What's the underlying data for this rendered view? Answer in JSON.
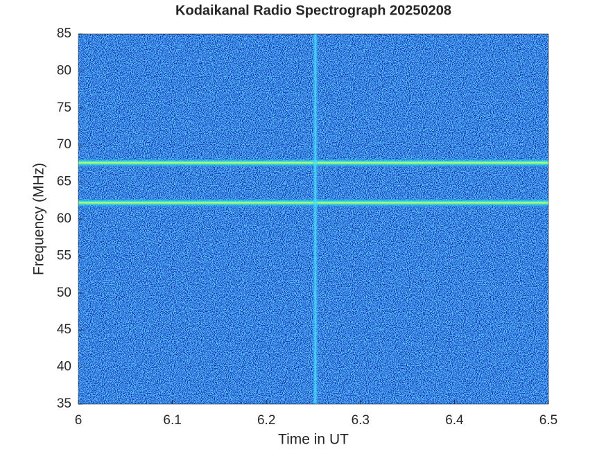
{
  "chart_data": {
    "type": "spectrogram",
    "title": "Kodaikanal Radio Spectrograph  20250208",
    "x_label": "Time in UT",
    "y_label": "Frequency (MHz)",
    "xlim": [
      6,
      6.5
    ],
    "xticks": [
      6,
      6.1,
      6.2,
      6.3,
      6.4,
      6.5
    ],
    "ylim": [
      35,
      85
    ],
    "yticks": [
      35,
      40,
      45,
      50,
      55,
      60,
      65,
      70,
      75,
      80,
      85
    ],
    "horizontal_bands": [
      67.6,
      62.2
    ],
    "vertical_bands": [
      6.252
    ]
  }
}
